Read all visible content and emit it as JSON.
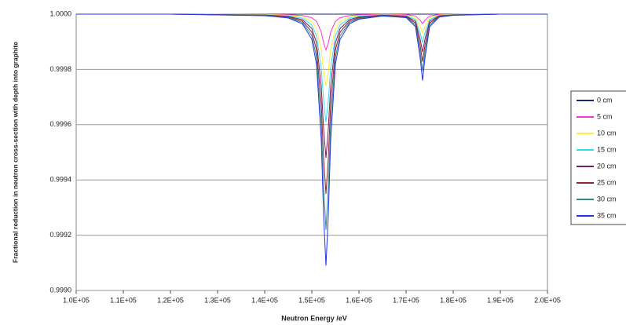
{
  "chart_data": {
    "type": "line",
    "y_label": "Fractional reduction in neutron cross-section with depth into graphite",
    "x_label": "Neutron Energy /eV",
    "x": [
      100000,
      120000,
      140000,
      145000,
      148000,
      150000,
      151000,
      152000,
      152500,
      153000,
      153500,
      154000,
      155000,
      156000,
      158000,
      160000,
      165000,
      170000,
      172000,
      173000,
      173500,
      174000,
      175000,
      177000,
      180000,
      190000,
      200000
    ],
    "series": [
      {
        "name": "0 cm",
        "color": "#1a237e",
        "values": [
          1,
          1,
          1,
          1,
          1,
          1,
          1,
          1,
          1,
          1,
          1,
          1,
          1,
          1,
          1,
          1,
          1,
          1,
          1,
          1,
          1,
          1,
          1,
          1,
          1,
          1,
          1
        ]
      },
      {
        "name": "5 cm",
        "color": "#ff33cc",
        "values": [
          1,
          1,
          0.9999992,
          0.999998,
          0.999995,
          0.999987,
          0.999974,
          0.999935,
          0.999896,
          0.99987,
          0.999896,
          0.999935,
          0.999974,
          0.999987,
          0.999995,
          0.9999974,
          0.999999,
          0.9999982,
          0.9999935,
          0.9999772,
          0.9999657,
          0.9999772,
          0.9999935,
          0.9999984,
          0.9999994,
          1,
          1
        ]
      },
      {
        "name": "10 cm",
        "color": "#ffee33",
        "values": [
          1,
          1,
          0.9999984,
          0.999996,
          0.99999,
          0.999974,
          0.999948,
          0.99987,
          0.999792,
          0.99974,
          0.999792,
          0.99987,
          0.999948,
          0.999974,
          0.99999,
          0.9999948,
          0.999998,
          0.9999964,
          0.999987,
          0.9999544,
          0.9999314,
          0.9999544,
          0.999987,
          0.9999968,
          0.9999988,
          1,
          1
        ]
      },
      {
        "name": "15 cm",
        "color": "#33ddee",
        "values": [
          1,
          1,
          0.9999976,
          0.999994,
          0.999985,
          0.999961,
          0.999922,
          0.999805,
          0.999688,
          0.99961,
          0.999688,
          0.999805,
          0.999922,
          0.999961,
          0.999985,
          0.9999922,
          0.999997,
          0.9999946,
          0.9999805,
          0.9999316,
          0.9998971,
          0.9999316,
          0.9999805,
          0.9999952,
          0.9999982,
          1,
          1
        ]
      },
      {
        "name": "20 cm",
        "color": "#7a1a6a",
        "values": [
          1,
          1,
          0.9999968,
          0.999992,
          0.99998,
          0.999948,
          0.999896,
          0.99974,
          0.999584,
          0.99948,
          0.999584,
          0.99974,
          0.999896,
          0.999948,
          0.99998,
          0.9999896,
          0.999996,
          0.9999928,
          0.999974,
          0.9999088,
          0.9998628,
          0.9999088,
          0.999974,
          0.9999936,
          0.9999976,
          1,
          1
        ]
      },
      {
        "name": "25 cm",
        "color": "#8b2a2a",
        "values": [
          1,
          1,
          0.999996,
          0.99999,
          0.999975,
          0.999935,
          0.99987,
          0.999675,
          0.99948,
          0.99935,
          0.99948,
          0.999675,
          0.99987,
          0.999935,
          0.999975,
          0.999987,
          0.999995,
          0.999991,
          0.9999675,
          0.999886,
          0.9998285,
          0.999886,
          0.9999675,
          0.999992,
          0.999997,
          1,
          1
        ]
      },
      {
        "name": "30 cm",
        "color": "#3a8a8a",
        "values": [
          1,
          1,
          0.9999952,
          0.999988,
          0.99997,
          0.999922,
          0.999844,
          0.99961,
          0.999376,
          0.99922,
          0.999376,
          0.99961,
          0.999844,
          0.999922,
          0.99997,
          0.9999844,
          0.999994,
          0.9999892,
          0.999961,
          0.9998632,
          0.9997942,
          0.9998632,
          0.999961,
          0.9999904,
          0.9999964,
          1,
          1
        ]
      },
      {
        "name": "35 cm",
        "color": "#2233ee",
        "values": [
          1,
          1,
          0.9999944,
          0.999986,
          0.999965,
          0.999909,
          0.999818,
          0.999545,
          0.999272,
          0.99909,
          0.999272,
          0.999545,
          0.999818,
          0.999909,
          0.999965,
          0.9999818,
          0.999993,
          0.9999874,
          0.9999545,
          0.9998404,
          0.9997599,
          0.9998404,
          0.9999545,
          0.9999888,
          0.9999958,
          1,
          1
        ]
      }
    ],
    "xlim": [
      100000,
      200000
    ],
    "xticks": [
      {
        "value": 100000,
        "label": "1.0E+05"
      },
      {
        "value": 110000,
        "label": "1.1E+05"
      },
      {
        "value": 120000,
        "label": "1.2E+05"
      },
      {
        "value": 130000,
        "label": "1.3E+05"
      },
      {
        "value": 140000,
        "label": "1.4E+05"
      },
      {
        "value": 150000,
        "label": "1.5E+05"
      },
      {
        "value": 160000,
        "label": "1.6E+05"
      },
      {
        "value": 170000,
        "label": "1.7E+05"
      },
      {
        "value": 180000,
        "label": "1.8E+05"
      },
      {
        "value": 190000,
        "label": "1.9E+05"
      },
      {
        "value": 200000,
        "label": "2.0E+05"
      }
    ],
    "ylim": [
      0.999,
      1
    ],
    "yticks": [
      {
        "value": 0.999,
        "label": "0.9990"
      },
      {
        "value": 0.9992,
        "label": "0.9992"
      },
      {
        "value": 0.9994,
        "label": "0.9994"
      },
      {
        "value": 0.9996,
        "label": "0.9996"
      },
      {
        "value": 0.9998,
        "label": "0.9998"
      },
      {
        "value": 1,
        "label": "1.0000"
      }
    ],
    "grid": true,
    "legend": "right"
  }
}
